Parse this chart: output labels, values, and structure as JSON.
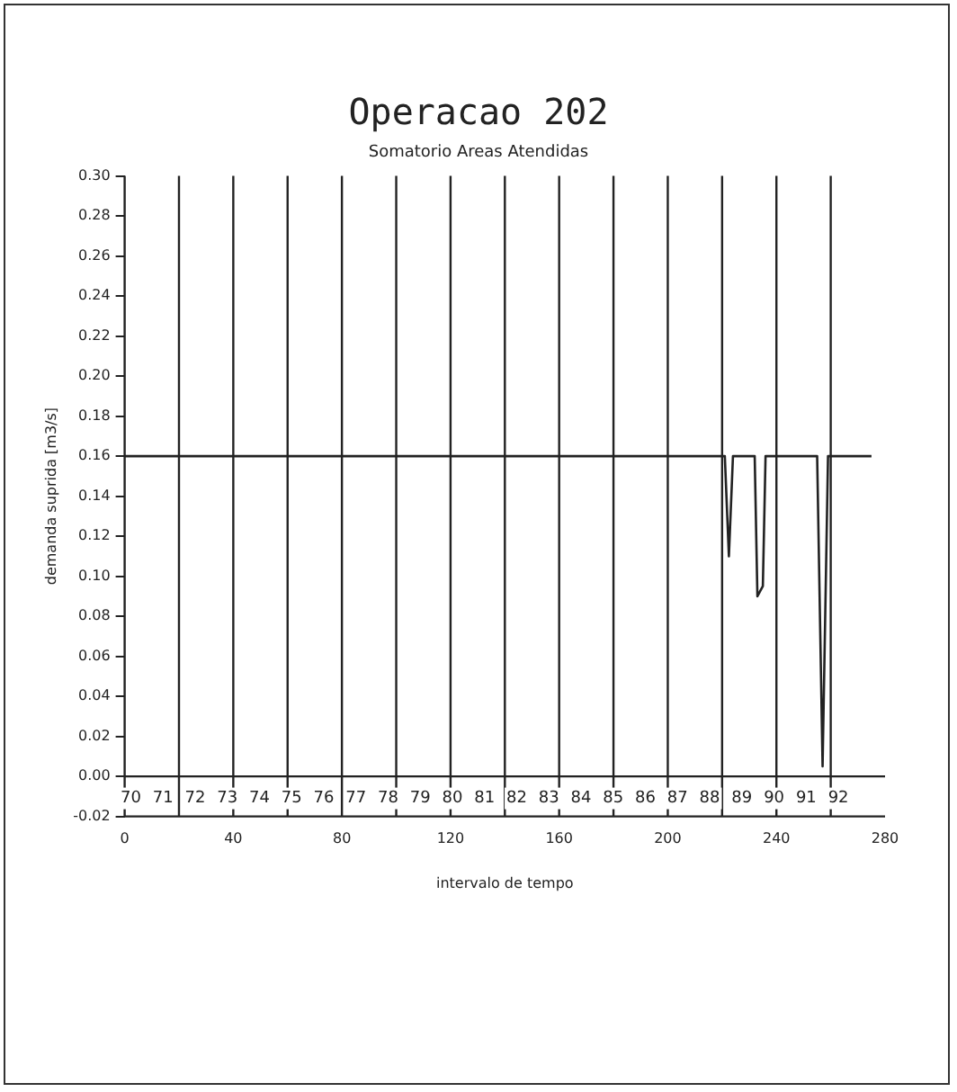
{
  "chart_data": {
    "type": "line",
    "title": "Operacao 202",
    "subtitle": "Somatorio Areas Atendidas",
    "xlabel": "intervalo de tempo",
    "ylabel": "demanda suprida [m3/s]",
    "x": [
      0,
      221,
      222.5,
      224,
      232,
      233,
      235,
      236,
      255,
      257,
      259,
      275
    ],
    "series": [
      {
        "color": "#222222",
        "values": [
          0.16,
          0.16,
          0.11,
          0.16,
          0.16,
          0.09,
          0.095,
          0.16,
          0.16,
          0.005,
          0.16,
          0.16
        ]
      }
    ],
    "xlim": [
      0,
      280
    ],
    "xticks": [
      0,
      40,
      80,
      120,
      160,
      200,
      240,
      280
    ],
    "ylim": [
      -0.02,
      0.3
    ],
    "yticks": [
      {
        "value": -0.02,
        "label": "-0.02"
      },
      {
        "value": 0,
        "label": "0.00"
      },
      {
        "value": 0.02,
        "label": "0.02"
      },
      {
        "value": 0.04,
        "label": "0.04"
      },
      {
        "value": 0.06,
        "label": "0.06"
      },
      {
        "value": 0.08,
        "label": "0.08"
      },
      {
        "value": 0.1,
        "label": "0.10"
      },
      {
        "value": 0.12,
        "label": "0.12"
      },
      {
        "value": 0.14,
        "label": "0.14"
      },
      {
        "value": 0.16,
        "label": "0.16"
      },
      {
        "value": 0.18,
        "label": "0.18"
      },
      {
        "value": 0.2,
        "label": "0.20"
      },
      {
        "value": 0.22,
        "label": "0.22"
      },
      {
        "value": 0.24,
        "label": "0.24"
      },
      {
        "value": 0.26,
        "label": "0.26"
      },
      {
        "value": 0.28,
        "label": "0.28"
      },
      {
        "value": 0.3,
        "label": "0.30"
      }
    ],
    "ref_lines": [
      {
        "axis": "y",
        "value": 0
      },
      {
        "axis": "x",
        "value": 20
      },
      {
        "axis": "x",
        "value": 40
      },
      {
        "axis": "x",
        "value": 60
      },
      {
        "axis": "x",
        "value": 80
      },
      {
        "axis": "x",
        "value": 100
      },
      {
        "axis": "x",
        "value": 120
      },
      {
        "axis": "x",
        "value": 140
      },
      {
        "axis": "x",
        "value": 160
      },
      {
        "axis": "x",
        "value": 180
      },
      {
        "axis": "x",
        "value": 200
      },
      {
        "axis": "x",
        "value": 220
      },
      {
        "axis": "x",
        "value": 240
      },
      {
        "axis": "x",
        "value": 260
      }
    ],
    "annotations": [
      "70",
      "71",
      "72",
      "73",
      "74",
      "75",
      "76",
      "77",
      "78",
      "79",
      "80",
      "81",
      "82",
      "83",
      "84",
      "85",
      "86",
      "87",
      "88",
      "89",
      "90",
      "91",
      "92"
    ],
    "grid": false,
    "legend": false,
    "marker": "none",
    "line_style": "solid"
  }
}
